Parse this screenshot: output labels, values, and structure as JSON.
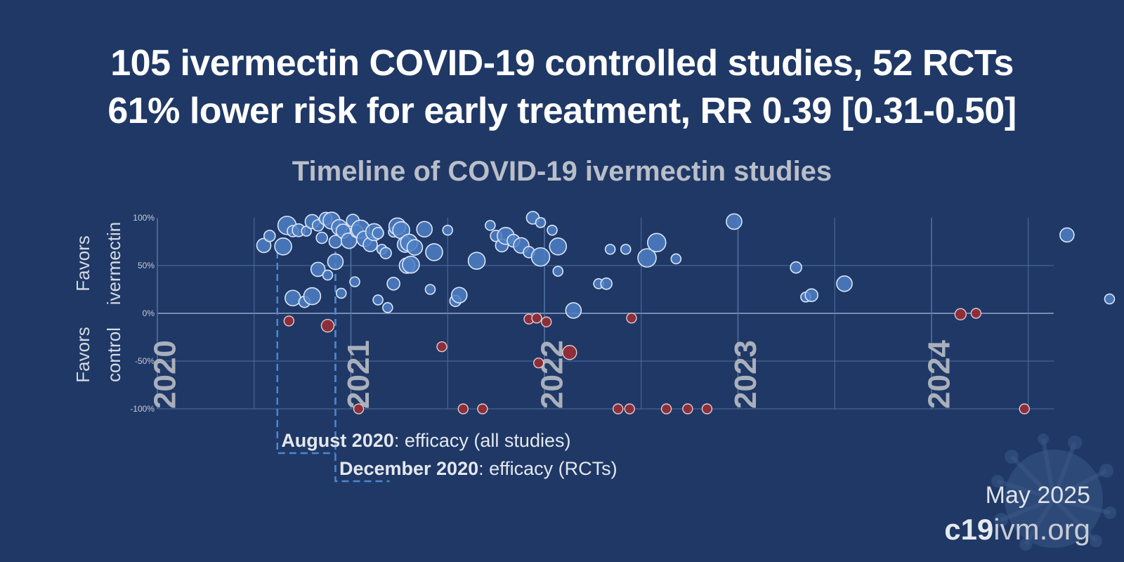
{
  "header": {
    "line1": "105 ivermectin COVID-19 controlled studies, 52 RCTs",
    "line2": "61% lower risk for early treatment, RR 0.39 [0.31-0.50]"
  },
  "footer": {
    "date": "May 2025",
    "site_bold": "c19",
    "site_light": "ivm.org"
  },
  "colors": {
    "background": "#1f3866",
    "favors_ivermectin": "#4e7fc4",
    "favors_control": "#8c2f3a",
    "dashed_box": "#4e86d0"
  },
  "chart_data": {
    "type": "scatter",
    "title": "Timeline of COVID-19 ivermectin studies",
    "ylabel_top": [
      "Favors",
      "ivermectin"
    ],
    "ylabel_bottom": [
      "Favors",
      "control"
    ],
    "x_range": [
      "2020-01-01",
      "2024-12-31"
    ],
    "year_labels": [
      "2020",
      "2021",
      "2022",
      "2023",
      "2024"
    ],
    "y_ticks": [
      "100%",
      "50%",
      "0%",
      "-50%",
      "-100%"
    ],
    "ylim": [
      -100,
      100
    ],
    "grid": true,
    "annotations": [
      {
        "bold": "August 2020",
        "text": ": efficacy (all studies)"
      },
      {
        "bold": "December 2020",
        "text": ": efficacy (RCTs)"
      }
    ],
    "points_favor_ivermectin": [
      [
        2020.55,
        71,
        10
      ],
      [
        2020.58,
        81,
        8
      ],
      [
        2020.65,
        70,
        12
      ],
      [
        2020.67,
        92,
        13
      ],
      [
        2020.7,
        86,
        8
      ],
      [
        2020.73,
        87,
        9
      ],
      [
        2020.77,
        86,
        7
      ],
      [
        2020.8,
        96,
        10
      ],
      [
        2020.83,
        92,
        8
      ],
      [
        2020.85,
        79,
        8
      ],
      [
        2020.87,
        99,
        9
      ],
      [
        2020.9,
        97,
        12
      ],
      [
        2020.92,
        75,
        9
      ],
      [
        2020.94,
        90,
        11
      ],
      [
        2020.96,
        86,
        10
      ],
      [
        2020.99,
        76,
        11
      ],
      [
        2021.01,
        97,
        9
      ],
      [
        2021.03,
        86,
        9
      ],
      [
        2021.05,
        88,
        13
      ],
      [
        2021.07,
        78,
        11
      ],
      [
        2021.1,
        72,
        10
      ],
      [
        2021.12,
        85,
        12
      ],
      [
        2021.14,
        84,
        8
      ],
      [
        2021.16,
        67,
        7
      ],
      [
        2021.18,
        63,
        8
      ],
      [
        2021.22,
        85,
        7
      ],
      [
        2021.24,
        91,
        12
      ],
      [
        2021.26,
        87,
        12
      ],
      [
        2021.28,
        72,
        11
      ],
      [
        2021.3,
        74,
        12
      ],
      [
        2021.33,
        69,
        11
      ],
      [
        2021.38,
        88,
        11
      ],
      [
        2021.43,
        64,
        12
      ],
      [
        2021.5,
        87,
        7
      ],
      [
        2021.65,
        55,
        12
      ],
      [
        2021.72,
        92,
        7
      ],
      [
        2021.75,
        81,
        8
      ],
      [
        2021.78,
        71,
        9
      ],
      [
        2021.8,
        81,
        12
      ],
      [
        2021.84,
        76,
        9
      ],
      [
        2021.88,
        71,
        11
      ],
      [
        2021.92,
        64,
        8
      ],
      [
        2021.94,
        100,
        9
      ],
      [
        2021.98,
        59,
        13
      ],
      [
        2022.04,
        87,
        7
      ],
      [
        2022.07,
        70,
        12
      ],
      [
        2022.15,
        3,
        11
      ],
      [
        2022.34,
        67,
        7
      ],
      [
        2022.42,
        67,
        7
      ],
      [
        2022.53,
        58,
        13
      ],
      [
        2022.58,
        74,
        13
      ],
      [
        2022.68,
        57,
        7
      ],
      [
        2020.7,
        16,
        11
      ],
      [
        2020.76,
        12,
        8
      ],
      [
        2020.8,
        18,
        12
      ],
      [
        2020.83,
        46,
        10
      ],
      [
        2020.88,
        40,
        7
      ],
      [
        2020.92,
        54,
        11
      ],
      [
        2020.95,
        21,
        7
      ],
      [
        2021.02,
        33,
        7
      ],
      [
        2021.14,
        14,
        7
      ],
      [
        2021.19,
        6,
        7
      ],
      [
        2021.22,
        31,
        9
      ],
      [
        2021.29,
        50,
        11
      ],
      [
        2021.31,
        51,
        12
      ],
      [
        2021.41,
        25,
        7
      ],
      [
        2021.54,
        13,
        8
      ],
      [
        2021.56,
        19,
        11
      ],
      [
        2021.98,
        95,
        7
      ],
      [
        2022.07,
        44,
        7
      ],
      [
        2022.28,
        31,
        7
      ],
      [
        2022.32,
        31,
        8
      ],
      [
        2022.98,
        96,
        11
      ],
      [
        2023.3,
        48,
        8
      ],
      [
        2023.35,
        17,
        7
      ],
      [
        2023.38,
        19,
        9
      ],
      [
        2023.55,
        31,
        11
      ],
      [
        2024.7,
        82,
        10
      ],
      [
        2024.92,
        15,
        7
      ]
    ],
    "points_favor_control": [
      [
        2020.68,
        -8,
        7
      ],
      [
        2020.88,
        -13,
        9
      ],
      [
        2021.04,
        -100,
        7
      ],
      [
        2021.47,
        -35,
        7
      ],
      [
        2021.58,
        -100,
        7
      ],
      [
        2021.68,
        -100,
        7
      ],
      [
        2021.92,
        -6,
        7
      ],
      [
        2021.96,
        -5,
        7
      ],
      [
        2021.97,
        -52,
        7
      ],
      [
        2022.01,
        -9,
        7
      ],
      [
        2022.13,
        -41,
        10
      ],
      [
        2022.38,
        -100,
        7
      ],
      [
        2022.44,
        -100,
        7
      ],
      [
        2022.45,
        -5,
        7
      ],
      [
        2022.63,
        -100,
        7
      ],
      [
        2022.74,
        -100,
        7
      ],
      [
        2022.84,
        -100,
        7
      ],
      [
        2024.15,
        -1,
        8
      ],
      [
        2024.23,
        0,
        7
      ],
      [
        2024.48,
        -100,
        7
      ]
    ]
  }
}
